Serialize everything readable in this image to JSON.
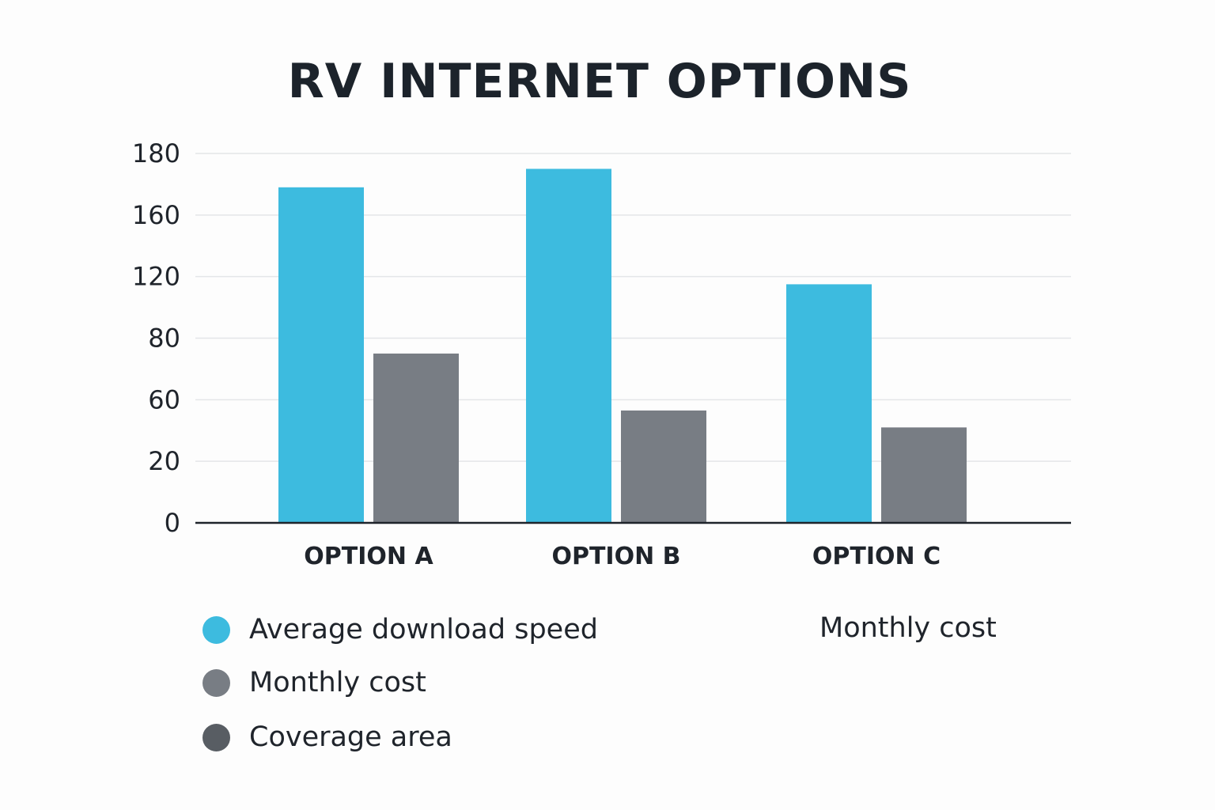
{
  "chart_data": {
    "type": "bar",
    "title": "RV INTERNET OPTIONS",
    "categories": [
      "OPTION A",
      "OPTION B",
      "OPTION C"
    ],
    "y_ticks": [
      "0",
      "20",
      "60",
      "80",
      "120",
      "160",
      "180"
    ],
    "series": [
      {
        "name": "Average download speed",
        "color": "#3dbbdf",
        "values": [
          169,
          175,
          115
        ]
      },
      {
        "name": "Monthly cost",
        "color": "#787d84",
        "values": [
          75,
          53,
          42
        ]
      }
    ],
    "legend": [
      {
        "label": "Average download speed",
        "color": "#3dbbdf"
      },
      {
        "label": "Monthly cost",
        "color": "#787d84"
      },
      {
        "label": "Coverage area",
        "color": "#585d63"
      }
    ],
    "extra_label": "Monthly cost",
    "grid": true,
    "legend_position": "bottom"
  }
}
